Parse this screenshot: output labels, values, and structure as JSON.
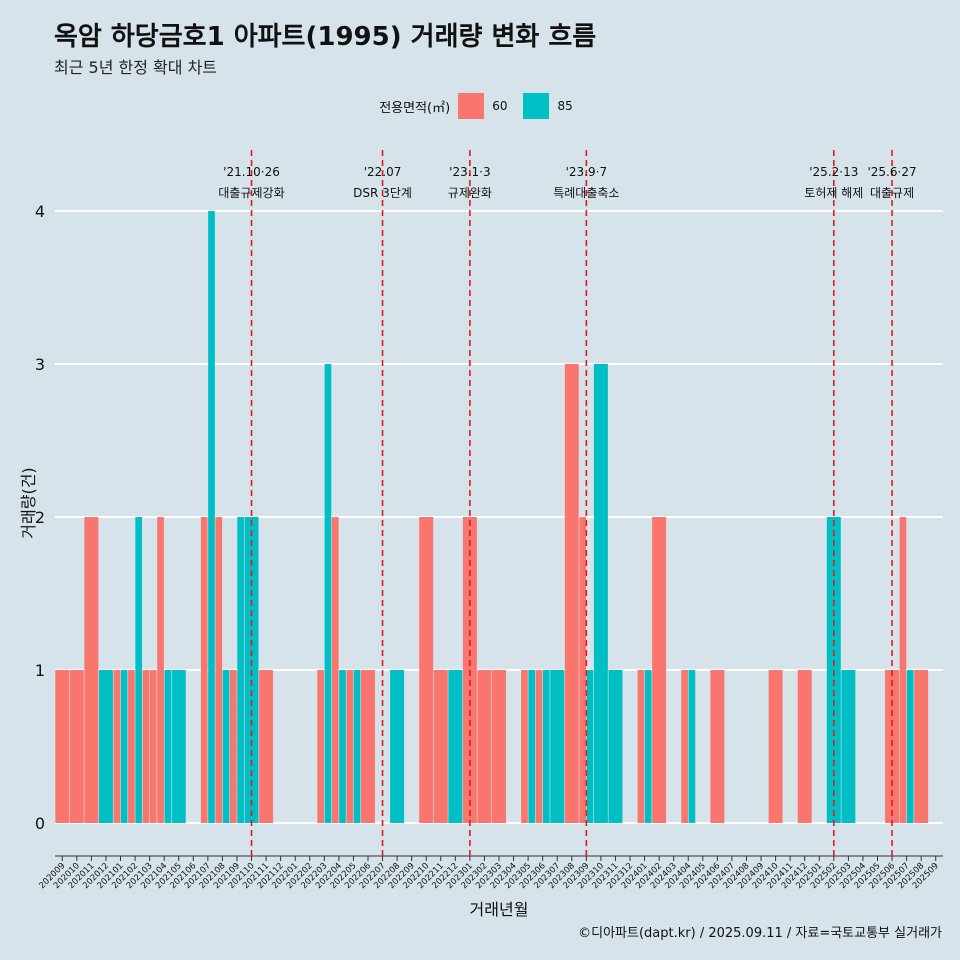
{
  "title": "옥암 하당금호1 아파트(1995) 거래량 변화 흐름",
  "subtitle": "최근 5년 한정 확대 차트",
  "caption": "©디아파트(dapt.kr) / 2025.09.11 / 자료=국토교통부 실거래가",
  "legend": {
    "title": "전용면적(㎡)",
    "items": [
      {
        "label": "60",
        "color": "#f8766d"
      },
      {
        "label": "85",
        "color": "#00bfc4"
      }
    ]
  },
  "chart_data": {
    "type": "bar",
    "xlabel": "거래년월",
    "ylabel": "거래량(건)",
    "ylim": [
      0,
      4
    ],
    "yticks": [
      0,
      1,
      2,
      3,
      4
    ],
    "categories": [
      "202009",
      "202010",
      "202011",
      "202012",
      "202101",
      "202102",
      "202103",
      "202104",
      "202105",
      "202106",
      "202107",
      "202108",
      "202109",
      "202110",
      "202111",
      "202112",
      "202201",
      "202202",
      "202203",
      "202204",
      "202205",
      "202206",
      "202207",
      "202208",
      "202209",
      "202210",
      "202211",
      "202212",
      "202301",
      "202302",
      "202303",
      "202304",
      "202305",
      "202306",
      "202307",
      "202308",
      "202309",
      "202310",
      "202311",
      "202312",
      "202401",
      "202402",
      "202403",
      "202404",
      "202405",
      "202406",
      "202407",
      "202408",
      "202409",
      "202410",
      "202411",
      "202412",
      "202501",
      "202502",
      "202503",
      "202504",
      "202505",
      "202506",
      "202507",
      "202508",
      "202509"
    ],
    "bars": [
      {
        "month": "202009",
        "area": "60",
        "value": 1
      },
      {
        "month": "202010",
        "area": "60",
        "value": 1
      },
      {
        "month": "202011",
        "area": "60",
        "value": 2
      },
      {
        "month": "202012",
        "area": "85",
        "value": 1
      },
      {
        "month": "202101",
        "area": "60",
        "value": 1
      },
      {
        "month": "202101",
        "area": "85",
        "value": 1
      },
      {
        "month": "202102",
        "area": "60",
        "value": 1
      },
      {
        "month": "202102",
        "area": "85",
        "value": 2
      },
      {
        "month": "202103",
        "area": "60",
        "value": 1
      },
      {
        "month": "202103",
        "area": "60",
        "value": 1
      },
      {
        "month": "202104",
        "area": "60",
        "value": 2
      },
      {
        "month": "202104",
        "area": "85",
        "value": 1
      },
      {
        "month": "202105",
        "area": "85",
        "value": 1
      },
      {
        "month": "202107",
        "area": "60",
        "value": 2
      },
      {
        "month": "202107",
        "area": "85",
        "value": 4
      },
      {
        "month": "202108",
        "area": "60",
        "value": 2
      },
      {
        "month": "202108",
        "area": "85",
        "value": 1
      },
      {
        "month": "202109",
        "area": "60",
        "value": 1
      },
      {
        "month": "202109",
        "area": "85",
        "value": 2
      },
      {
        "month": "202110",
        "area": "85",
        "value": 2
      },
      {
        "month": "202111",
        "area": "60",
        "value": 1
      },
      {
        "month": "202203",
        "area": "60",
        "value": 1
      },
      {
        "month": "202203",
        "area": "85",
        "value": 3
      },
      {
        "month": "202204",
        "area": "60",
        "value": 2
      },
      {
        "month": "202204",
        "area": "85",
        "value": 1
      },
      {
        "month": "202205",
        "area": "60",
        "value": 1
      },
      {
        "month": "202205",
        "area": "85",
        "value": 1
      },
      {
        "month": "202206",
        "area": "60",
        "value": 1
      },
      {
        "month": "202208",
        "area": "85",
        "value": 1
      },
      {
        "month": "202210",
        "area": "60",
        "value": 2
      },
      {
        "month": "202211",
        "area": "60",
        "value": 1
      },
      {
        "month": "202212",
        "area": "85",
        "value": 1
      },
      {
        "month": "202301",
        "area": "60",
        "value": 2
      },
      {
        "month": "202302",
        "area": "60",
        "value": 1
      },
      {
        "month": "202303",
        "area": "60",
        "value": 1
      },
      {
        "month": "202305",
        "area": "60",
        "value": 1
      },
      {
        "month": "202305",
        "area": "85",
        "value": 1
      },
      {
        "month": "202306",
        "area": "60",
        "value": 1
      },
      {
        "month": "202306",
        "area": "85",
        "value": 1
      },
      {
        "month": "202307",
        "area": "85",
        "value": 1
      },
      {
        "month": "202308",
        "area": "60",
        "value": 3
      },
      {
        "month": "202309",
        "area": "60",
        "value": 2
      },
      {
        "month": "202309",
        "area": "85",
        "value": 1
      },
      {
        "month": "202310",
        "area": "85",
        "value": 3
      },
      {
        "month": "202311",
        "area": "85",
        "value": 1
      },
      {
        "month": "202401",
        "area": "60",
        "value": 1
      },
      {
        "month": "202401",
        "area": "85",
        "value": 1
      },
      {
        "month": "202402",
        "area": "60",
        "value": 2
      },
      {
        "month": "202404",
        "area": "60",
        "value": 1
      },
      {
        "month": "202404",
        "area": "85",
        "value": 1
      },
      {
        "month": "202406",
        "area": "60",
        "value": 1
      },
      {
        "month": "202410",
        "area": "60",
        "value": 1
      },
      {
        "month": "202412",
        "area": "60",
        "value": 1
      },
      {
        "month": "202502",
        "area": "85",
        "value": 2
      },
      {
        "month": "202503",
        "area": "85",
        "value": 1
      },
      {
        "month": "202506",
        "area": "60",
        "value": 1
      },
      {
        "month": "202507",
        "area": "60",
        "value": 2
      },
      {
        "month": "202507",
        "area": "85",
        "value": 1
      },
      {
        "month": "202508",
        "area": "60",
        "value": 1
      }
    ],
    "events": [
      {
        "month": "202110",
        "date": "'21.10·26",
        "label": "대출규제강화"
      },
      {
        "month": "202207",
        "date": "'22.07",
        "label": "DSR 3단계"
      },
      {
        "month": "202301",
        "date": "'23.1·3",
        "label": "규제완화"
      },
      {
        "month": "202309",
        "date": "'23.9·7",
        "label": "특례대출축소"
      },
      {
        "month": "202502",
        "date": "'25.2·13",
        "label": "토허제 해제"
      },
      {
        "month": "202506",
        "date": "'25.6·27",
        "label": "대출규제"
      }
    ],
    "grid": true,
    "legend_position": "top"
  }
}
